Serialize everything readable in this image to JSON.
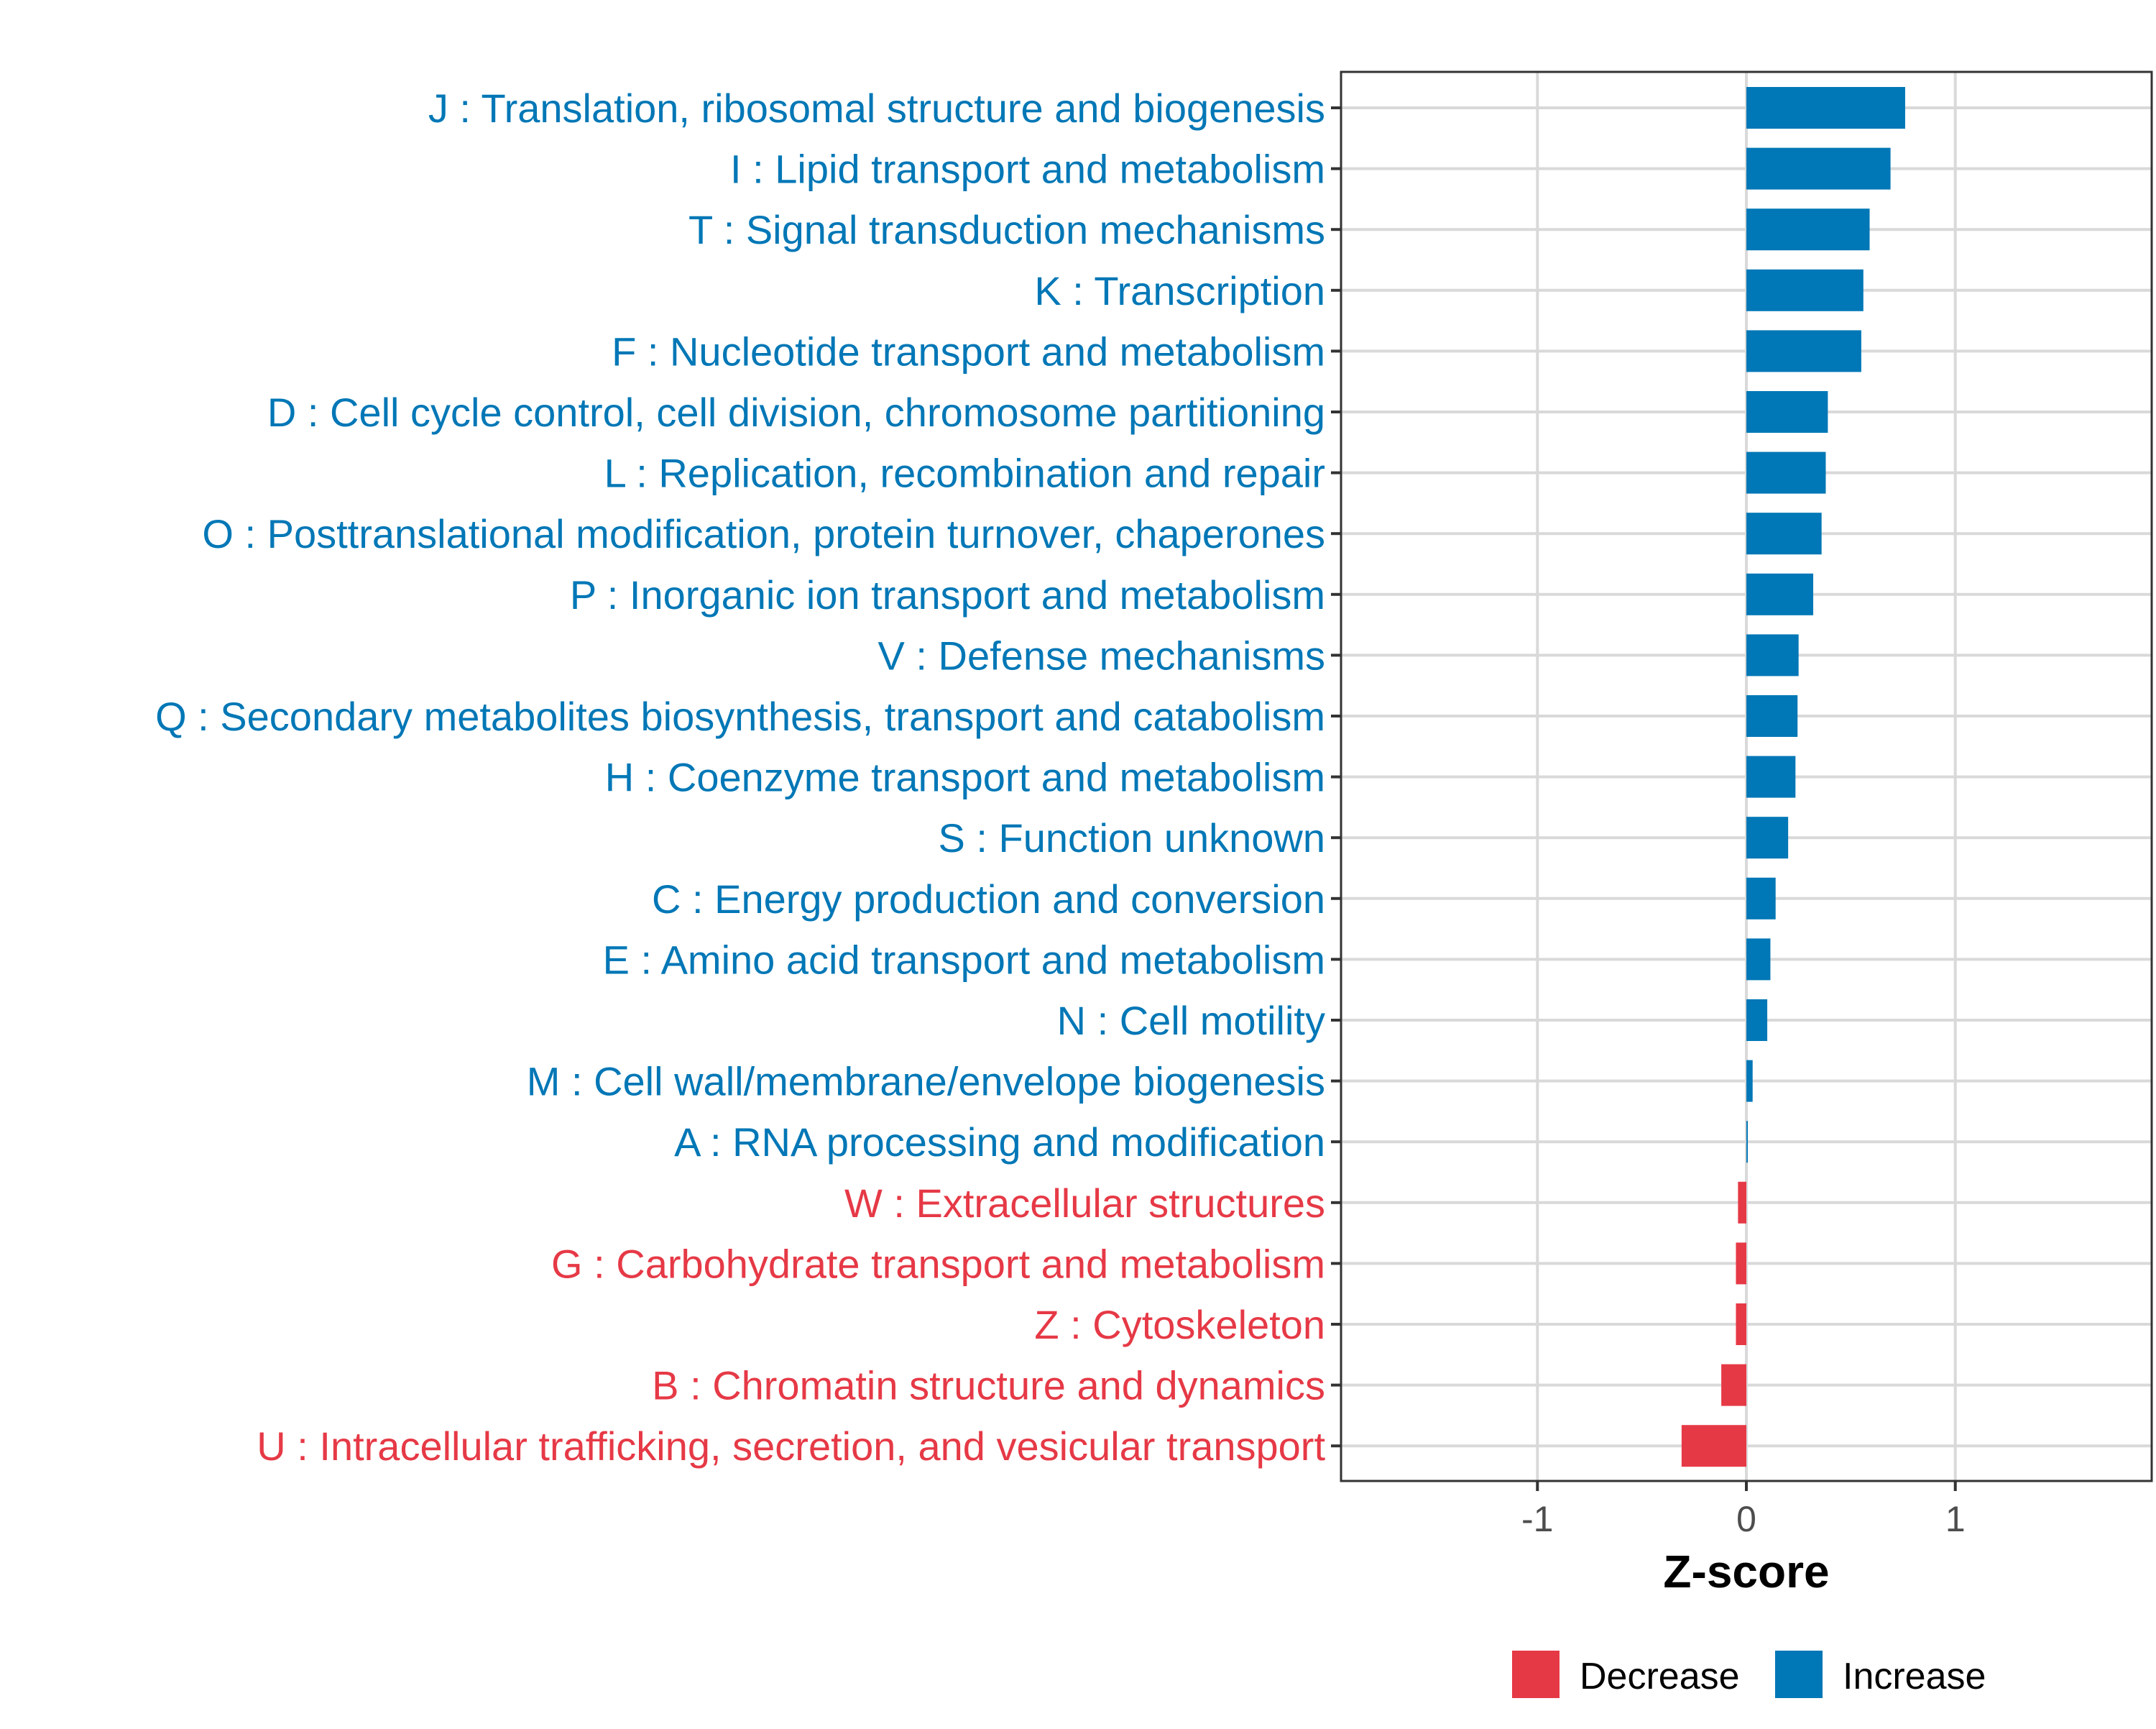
{
  "chart_data": {
    "type": "bar",
    "orientation": "horizontal",
    "categories": [
      "J : Translation, ribosomal structure and biogenesis",
      "I : Lipid transport and metabolism",
      "T : Signal transduction mechanisms",
      "K : Transcription",
      "F : Nucleotide transport and metabolism",
      "D : Cell cycle control, cell division, chromosome partitioning",
      "L : Replication, recombination and repair",
      "O : Posttranslational modification, protein turnover, chaperones",
      "P : Inorganic ion transport and metabolism",
      "V : Defense mechanisms",
      "Q : Secondary metabolites biosynthesis, transport and catabolism",
      "H : Coenzyme transport and metabolism",
      "S : Function unknown",
      "C : Energy production and conversion",
      "E : Amino acid transport and metabolism",
      "N : Cell motility",
      "M : Cell wall/membrane/envelope biogenesis",
      "A : RNA processing and modification",
      "W : Extracellular structures",
      "G : Carbohydrate transport and metabolism",
      "Z : Cytoskeleton",
      "B : Chromatin structure and dynamics",
      "U : Intracellular trafficking, secretion, and vesicular transport"
    ],
    "values": [
      0.76,
      0.69,
      0.59,
      0.56,
      0.55,
      0.39,
      0.38,
      0.36,
      0.32,
      0.25,
      0.245,
      0.235,
      0.2,
      0.14,
      0.115,
      0.1,
      0.03,
      0.005,
      -0.04,
      -0.05,
      -0.05,
      -0.12,
      -0.31
    ],
    "groups": [
      "Increase",
      "Increase",
      "Increase",
      "Increase",
      "Increase",
      "Increase",
      "Increase",
      "Increase",
      "Increase",
      "Increase",
      "Increase",
      "Increase",
      "Increase",
      "Increase",
      "Increase",
      "Increase",
      "Increase",
      "Increase",
      "Decrease",
      "Decrease",
      "Decrease",
      "Decrease",
      "Decrease"
    ],
    "xlabel": "Z-score",
    "ylabel": "",
    "xlim": [
      -1.94,
      1.94
    ],
    "xticks": [
      -1,
      0,
      1
    ],
    "xtick_labels": [
      "-1",
      "0",
      "1"
    ],
    "grid": true,
    "legend": {
      "position": "bottom",
      "entries": [
        {
          "name": "Decrease",
          "color": "#e63946"
        },
        {
          "name": "Increase",
          "color": "#0077b6"
        }
      ]
    },
    "colors": {
      "Decrease": "#e63946",
      "Increase": "#0077b6"
    }
  }
}
